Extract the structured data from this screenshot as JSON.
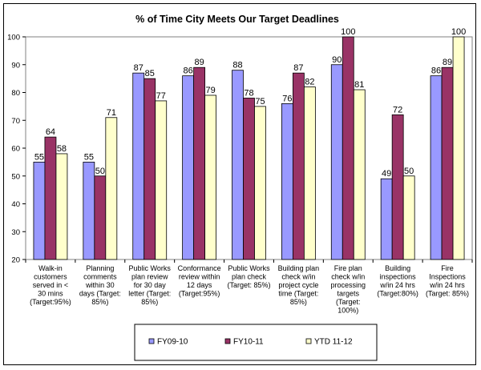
{
  "chart_data": {
    "type": "bar",
    "title": "% of Time City Meets Our Target Deadlines",
    "ylim": [
      20,
      100
    ],
    "yticks": [
      20,
      30,
      40,
      50,
      60,
      70,
      80,
      90,
      100
    ],
    "grid": false,
    "legend_position": "bottom",
    "categories": [
      [
        "Walk-in",
        "customers",
        "served in <",
        "30 mins",
        "(Target:95%)"
      ],
      [
        "Planning",
        "comments",
        "within 30",
        "days (Target:",
        "85%)"
      ],
      [
        "Public Works",
        "plan review",
        "for 30 day",
        "letter (Target:",
        "85%)"
      ],
      [
        "Conformance",
        "review within",
        "12 days",
        "(Target:95%)"
      ],
      [
        "Public Works",
        "plan check",
        "(Target: 85%)"
      ],
      [
        "Building plan",
        "check w/in",
        "project cycle",
        "time (Target:",
        "85%)"
      ],
      [
        "Fire plan",
        "check w/in",
        "processing",
        "targets",
        "(Target:",
        "100%)"
      ],
      [
        "Building",
        "inspections",
        "w/in 24 hrs",
        "(Target:80%)"
      ],
      [
        "Fire",
        "Inspections",
        "w/in 24 hrs",
        "(Target: 85%)"
      ]
    ],
    "series": [
      {
        "name": "FY09-10",
        "color": "#9999ff",
        "values": [
          55,
          55,
          87,
          86,
          88,
          76,
          90,
          49,
          86
        ]
      },
      {
        "name": "FY10-11",
        "color": "#993366",
        "values": [
          64,
          50,
          85,
          89,
          78,
          87,
          100,
          72,
          89
        ]
      },
      {
        "name": "YTD 11-12",
        "color": "#ffffcc",
        "values": [
          58,
          71,
          77,
          79,
          75,
          82,
          81,
          50,
          100
        ]
      }
    ]
  }
}
